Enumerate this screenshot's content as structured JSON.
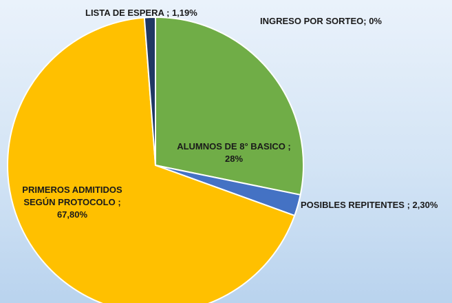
{
  "chart_data": {
    "type": "pie",
    "categories": [
      "ALUMNOS DE 8° BASICO ;",
      "POSIBLES REPITENTES ;",
      "PRIMEROS ADMITIDOS SEGÚN PROTOCOLO ;",
      "LISTA DE ESPERA ;",
      "INGRESO POR SORTEO;"
    ],
    "values": [
      28,
      2.3,
      67.8,
      1.19,
      0
    ],
    "value_labels": [
      "28%",
      "2,30%",
      "67,80%",
      "1,19%",
      "0%"
    ],
    "colors": [
      "#70ad47",
      "#4472c4",
      "#ffc000",
      "#203864",
      "#a5a5a5"
    ]
  }
}
